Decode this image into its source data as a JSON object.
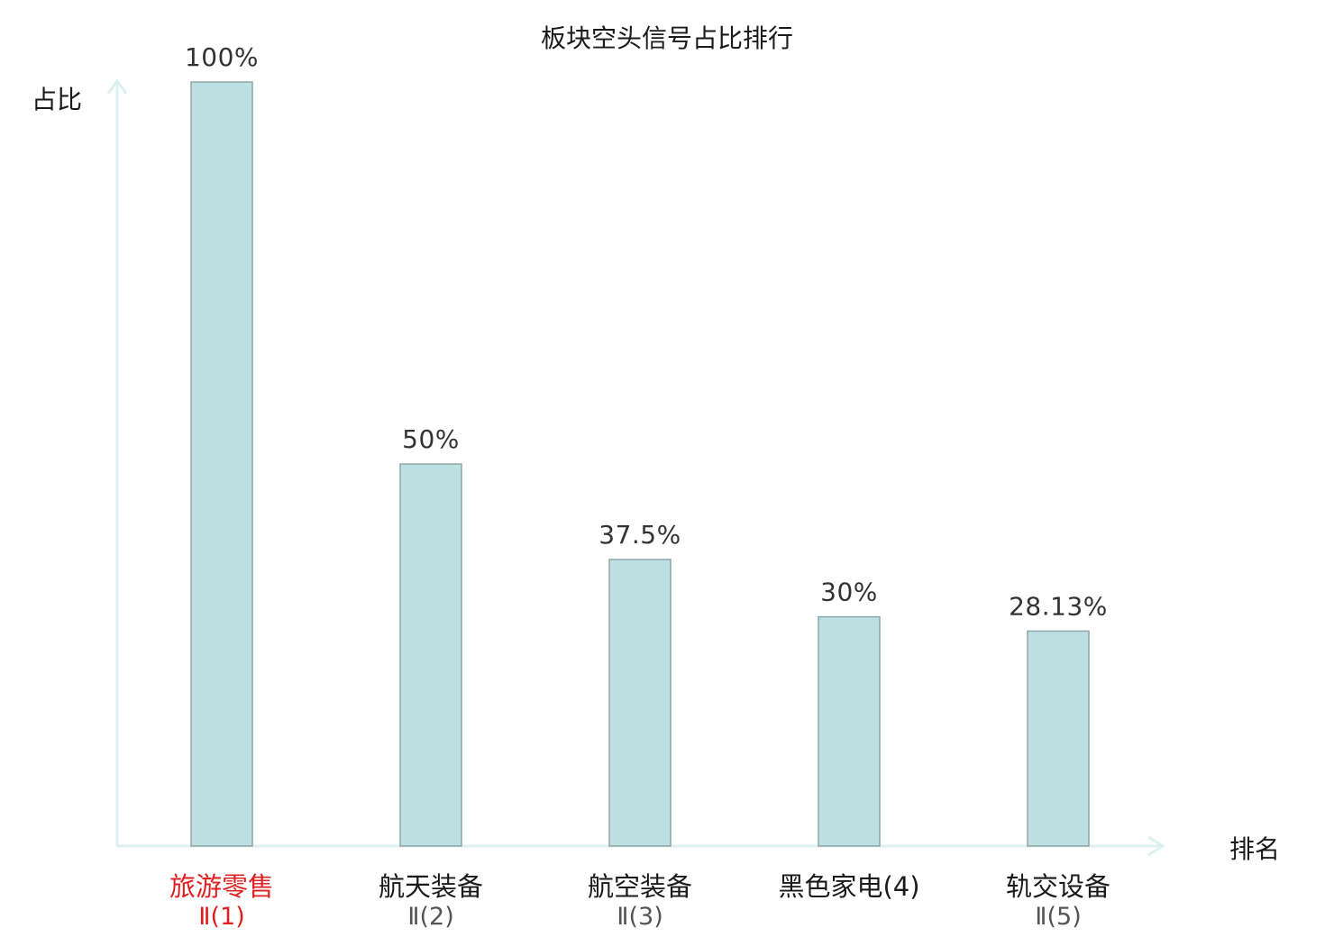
{
  "chart_data": {
    "type": "bar",
    "title": "板块空头信号占比排行",
    "xlabel": "排名",
    "ylabel": "占比",
    "ylim": [
      0,
      100
    ],
    "grid": false,
    "categories": [
      {
        "name": "旅游零售",
        "sub": "Ⅱ(1)",
        "highlight": true
      },
      {
        "name": "航天装备",
        "sub": "Ⅱ(2)",
        "highlight": false
      },
      {
        "name": "航空装备",
        "sub": "Ⅱ(3)",
        "highlight": false
      },
      {
        "name": "黑色家电(4)",
        "sub": "",
        "highlight": false
      },
      {
        "name": "轨交设备",
        "sub": "Ⅱ(5)",
        "highlight": false
      }
    ],
    "values": [
      100,
      50,
      37.5,
      30,
      28.13
    ],
    "value_labels": [
      "100%",
      "50%",
      "37.5%",
      "30%",
      "28.13%"
    ]
  },
  "colors": {
    "bar_fill": "#bce0e2",
    "bar_stroke": "#8fa6a6",
    "axis": "#dcf1ef",
    "highlight_text": "#e02020",
    "text": "#1a1a1a",
    "sub_text": "#555555"
  }
}
